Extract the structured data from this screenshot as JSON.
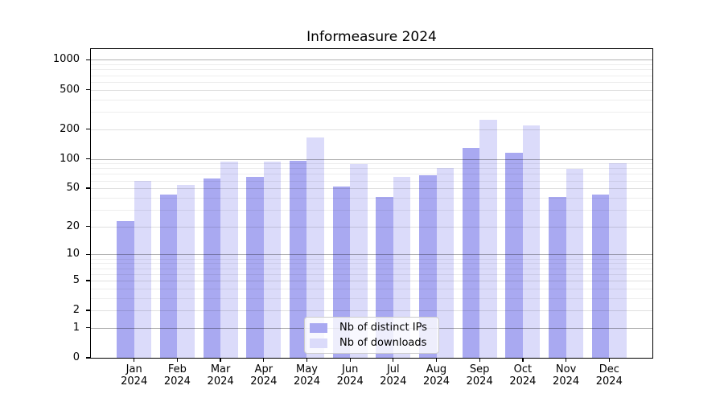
{
  "chart_data": {
    "type": "bar",
    "title": "Informeasure 2024",
    "categories": [
      "Jan",
      "Feb",
      "Mar",
      "Apr",
      "May",
      "Jun",
      "Jul",
      "Aug",
      "Sep",
      "Oct",
      "Nov",
      "Dec"
    ],
    "x_tick_second_line": "2024",
    "series": [
      {
        "name": "Nb of distinct IPs",
        "color": "#a9a9f1",
        "values": [
          23,
          43,
          63,
          65,
          95,
          52,
          41,
          68,
          130,
          115,
          41,
          43
        ]
      },
      {
        "name": "Nb of downloads",
        "color": "#dbdbfa",
        "values": [
          59,
          54,
          94,
          94,
          166,
          88,
          66,
          81,
          250,
          218,
          79,
          91
        ]
      }
    ],
    "y_axis": {
      "scale": "log10(1+x)",
      "ticks": [
        1000,
        500,
        200,
        100,
        50,
        20,
        10,
        5,
        2,
        1,
        0
      ],
      "max": 1285
    },
    "grid": true,
    "legend_position": "lower center"
  },
  "colors": {
    "background": "#ffffff",
    "bar_distinct_ips": "#a9a9f1",
    "bar_downloads": "#dbdbfa",
    "grid_major": "rgba(0,0,0,0.30)",
    "grid_mid": "rgba(0,0,0,0.12)",
    "grid_minor": "rgba(0,0,0,0.07)",
    "legend_border": "#cccccc"
  }
}
